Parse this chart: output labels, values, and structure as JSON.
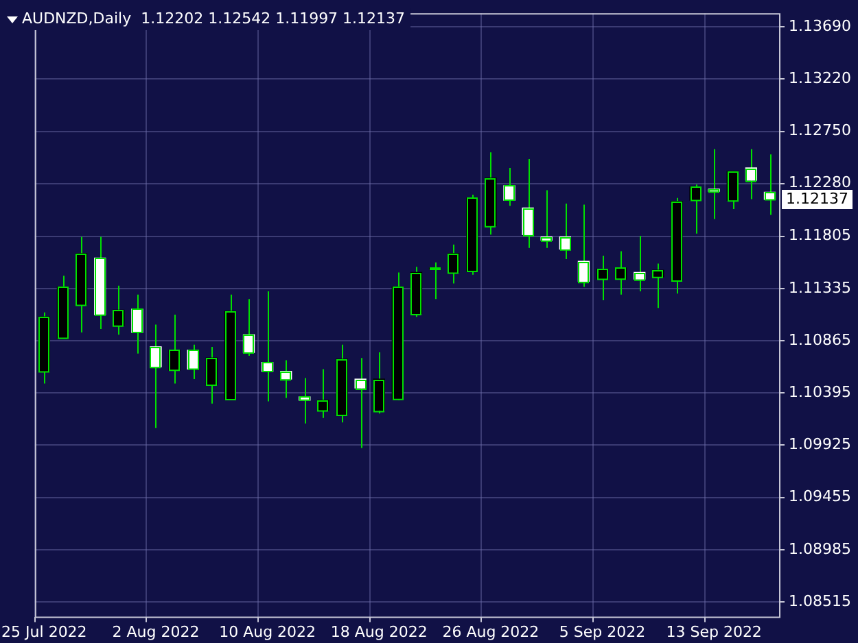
{
  "chart_data": {
    "type": "candlestick",
    "title": "AUDNZD,Daily  1.12202 1.12542 1.11997 1.12137",
    "categories": [
      "25 Jul 2022",
      null,
      null,
      null,
      null,
      null,
      "2 Aug 2022",
      null,
      null,
      null,
      null,
      null,
      "10 Aug 2022",
      null,
      null,
      null,
      null,
      null,
      "18 Aug 2022",
      null,
      null,
      null,
      null,
      null,
      "26 Aug 2022",
      null,
      null,
      null,
      null,
      null,
      "5 Sep 2022",
      null,
      null,
      null,
      null,
      null,
      "13 Sep 2022",
      null,
      null,
      null
    ],
    "ohlc": [
      [
        1.1059,
        1.1112,
        1.1048,
        1.1108
      ],
      [
        1.1089,
        1.1145,
        1.1089,
        1.1135
      ],
      [
        1.1119,
        1.118,
        1.1094,
        1.1165
      ],
      [
        1.1161,
        1.118,
        1.1097,
        1.111
      ],
      [
        1.11,
        1.1136,
        1.1092,
        1.1114
      ],
      [
        1.1115,
        1.1128,
        1.1075,
        1.1094
      ],
      [
        1.1081,
        1.1101,
        1.1008,
        1.1063
      ],
      [
        1.106,
        1.111,
        1.1048,
        1.1078
      ],
      [
        1.1078,
        1.1083,
        1.1052,
        1.1061
      ],
      [
        1.1047,
        1.1081,
        1.103,
        1.1071
      ],
      [
        1.1034,
        1.1128,
        1.1034,
        1.1113
      ],
      [
        1.1092,
        1.1124,
        1.1073,
        1.1076
      ],
      [
        1.1067,
        1.1131,
        1.1032,
        1.1059
      ],
      [
        1.1059,
        1.1069,
        1.1035,
        1.1052
      ],
      [
        1.1036,
        1.1053,
        1.1012,
        1.1033
      ],
      [
        1.1024,
        1.1061,
        1.1017,
        1.1033
      ],
      [
        1.102,
        1.1083,
        1.1013,
        1.107
      ],
      [
        1.1052,
        1.1071,
        1.099,
        1.1044
      ],
      [
        1.1024,
        1.1076,
        1.1021,
        1.1052
      ],
      [
        1.1034,
        1.1148,
        1.1033,
        1.1135
      ],
      [
        1.1111,
        1.1153,
        1.1108,
        1.1148
      ],
      [
        1.1151,
        1.1157,
        1.1124,
        1.1152
      ],
      [
        1.1148,
        1.1173,
        1.1138,
        1.1165
      ],
      [
        1.1149,
        1.1218,
        1.1146,
        1.1215
      ],
      [
        1.119,
        1.1256,
        1.1182,
        1.1233
      ],
      [
        1.1226,
        1.1242,
        1.1208,
        1.1213
      ],
      [
        1.1206,
        1.125,
        1.117,
        1.1182
      ],
      [
        1.118,
        1.1222,
        1.117,
        1.1177
      ],
      [
        1.118,
        1.121,
        1.116,
        1.1169
      ],
      [
        1.1158,
        1.1209,
        1.1135,
        1.114
      ],
      [
        1.1142,
        1.1163,
        1.1123,
        1.1151
      ],
      [
        1.1142,
        1.1167,
        1.1128,
        1.1152
      ],
      [
        1.1148,
        1.1181,
        1.1131,
        1.1142
      ],
      [
        1.1144,
        1.1156,
        1.1116,
        1.115
      ],
      [
        1.1141,
        1.1215,
        1.1129,
        1.1212
      ],
      [
        1.1213,
        1.1227,
        1.1183,
        1.1225
      ],
      [
        1.1223,
        1.1259,
        1.1196,
        1.1221
      ],
      [
        1.1213,
        1.1239,
        1.1205,
        1.1239
      ],
      [
        1.1242,
        1.1259,
        1.1214,
        1.1231
      ],
      [
        1.12202,
        1.12542,
        1.11997,
        1.12137
      ]
    ],
    "color": "#00e000",
    "colors": [
      "#000000",
      "#000000",
      "#000000",
      "#ffffff",
      "#000000",
      "#ffffff",
      "#ffffff",
      "#000000",
      "#ffffff",
      "#000000",
      "#000000",
      "#ffffff",
      "#ffffff",
      "#ffffff",
      "#ffffff",
      "#000000",
      "#000000",
      "#ffffff",
      "#000000",
      "#000000",
      "#000000",
      "#000000",
      "#000000",
      "#000000",
      "#000000",
      "#ffffff",
      "#ffffff",
      "#ffffff",
      "#ffffff",
      "#ffffff",
      "#000000",
      "#000000",
      "#ffffff",
      "#000000",
      "#000000",
      "#000000",
      "#ffffff",
      "#000000",
      "#ffffff",
      "#ffffff"
    ],
    "ylim": [
      1.08382,
      1.13813
    ],
    "yticks": [
      {
        "value": 1.1369,
        "label": "1.13690"
      },
      {
        "value": 1.1322,
        "label": "1.13220"
      },
      {
        "value": 1.1275,
        "label": "1.12750"
      },
      {
        "value": 1.1228,
        "label": "1.12280"
      },
      {
        "value": 1.11805,
        "label": "1.11805"
      },
      {
        "value": 1.11335,
        "label": "1.11335"
      },
      {
        "value": 1.10865,
        "label": "1.10865"
      },
      {
        "value": 1.10395,
        "label": "1.10395"
      },
      {
        "value": 1.09925,
        "label": "1.09925"
      },
      {
        "value": 1.09455,
        "label": "1.09455"
      },
      {
        "value": 1.08985,
        "label": "1.08985"
      },
      {
        "value": 1.08515,
        "label": "1.08515"
      }
    ],
    "annotations": [
      "1.12137"
    ],
    "grid": true,
    "legend": false
  }
}
